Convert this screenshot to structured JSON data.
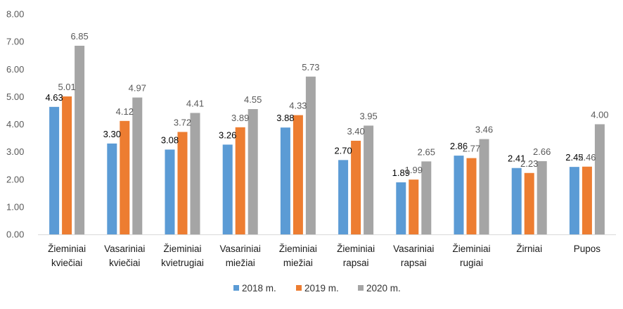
{
  "chart_data": {
    "type": "bar",
    "title": "",
    "xlabel": "",
    "ylabel": "",
    "ylim": [
      0,
      8
    ],
    "yticks": [
      "0.00",
      "1.00",
      "2.00",
      "3.00",
      "4.00",
      "5.00",
      "6.00",
      "7.00",
      "8.00"
    ],
    "grid": false,
    "legend_position": "bottom",
    "categories": [
      [
        "Žieminiai",
        "kviečiai"
      ],
      [
        "Vasariniai",
        "kviečiai"
      ],
      [
        "Žieminiai",
        "kvietrugiai"
      ],
      [
        "Vasariniai",
        "miežiai"
      ],
      [
        "Žieminiai",
        "miežiai"
      ],
      [
        "Žieminiai",
        "rapsai"
      ],
      [
        "Vasariniai",
        "rapsai"
      ],
      [
        "Žieminiai",
        "rugiai"
      ],
      [
        "Žirniai"
      ],
      [
        "Pupos"
      ]
    ],
    "series": [
      {
        "name": "2018 m.",
        "color": "#5b9bd5",
        "label_color": "#000000",
        "values": [
          4.63,
          3.3,
          3.08,
          3.26,
          3.88,
          2.7,
          1.89,
          2.86,
          2.41,
          2.45
        ],
        "labels": [
          "4.63",
          "3.30",
          "3.08",
          "3.26",
          "3.88",
          "2.70",
          "1.89",
          "2.86",
          "2.41",
          "2.45"
        ]
      },
      {
        "name": "2019 m.",
        "color": "#ed7d31",
        "label_color": "#595959",
        "values": [
          5.01,
          4.12,
          3.72,
          3.89,
          4.33,
          3.4,
          1.99,
          2.77,
          2.23,
          2.46
        ],
        "labels": [
          "5.01",
          "4.12",
          "3.72",
          "3.89",
          "4.33",
          "3.40",
          "1.99",
          "2.77",
          "2.23",
          "2.46"
        ]
      },
      {
        "name": "2020 m.",
        "color": "#a5a5a5",
        "label_color": "#595959",
        "values": [
          6.85,
          4.97,
          4.41,
          4.55,
          5.73,
          3.95,
          2.65,
          3.46,
          2.66,
          4.0
        ],
        "labels": [
          "6.85",
          "4.97",
          "4.41",
          "4.55",
          "5.73",
          "3.95",
          "2.65",
          "3.46",
          "2.66",
          "4.00"
        ]
      }
    ]
  }
}
